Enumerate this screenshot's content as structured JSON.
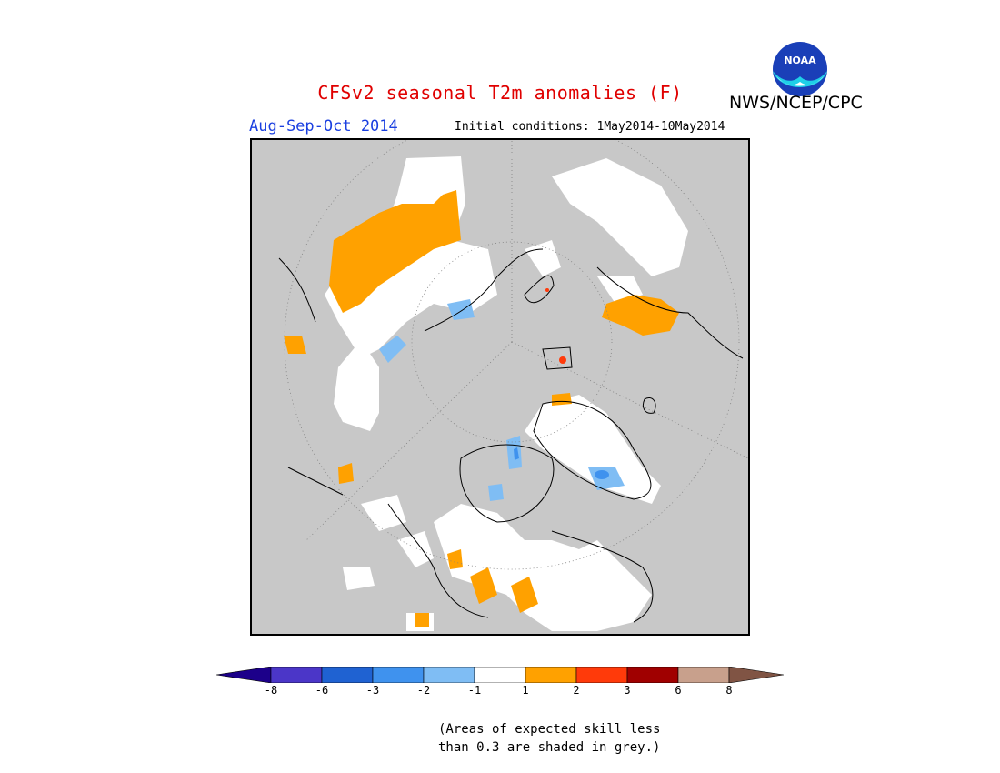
{
  "header": {
    "title": "CFSv2 seasonal T2m anomalies (F)",
    "season": "Aug-Sep-Oct 2014",
    "initial_conditions": "Initial conditions: 1May2014-10May2014",
    "org": "NWS/NCEP/CPC",
    "logo_text": "NOAA"
  },
  "colorbar": {
    "ticks": [
      "-8",
      "-6",
      "-3",
      "-2",
      "-1",
      "1",
      "2",
      "3",
      "6",
      "8"
    ],
    "colors": [
      "#1c008a",
      "#4b36c8",
      "#1f62d2",
      "#3f92ee",
      "#7fbdf4",
      "#ffffff",
      "#ffa100",
      "#ff3a0a",
      "#a00000",
      "#c8a08c",
      "#805444"
    ]
  },
  "note": {
    "line1": "(Areas of expected skill less",
    "line2": "than 0.3 are shaded in grey.)"
  },
  "colors": {
    "title": "#e00000",
    "season": "#1a3fe0",
    "skill_grey": "#c8c8c8"
  }
}
